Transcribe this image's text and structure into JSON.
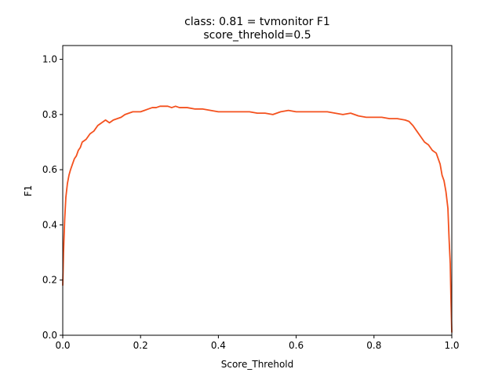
{
  "chart_data": {
    "type": "line",
    "title": "class: 0.81 = tvmonitor F1",
    "subtitle": "score_threhold=0.5",
    "xlabel": "Score_Threhold",
    "ylabel": "F1",
    "xlim": [
      0.0,
      1.0
    ],
    "ylim": [
      0.0,
      1.05
    ],
    "xticks": [
      0.0,
      0.2,
      0.4,
      0.6,
      0.8,
      1.0
    ],
    "xtick_labels": [
      "0.0",
      "0.2",
      "0.4",
      "0.6",
      "0.8",
      "1.0"
    ],
    "yticks": [
      0.0,
      0.2,
      0.4,
      0.6,
      0.8,
      1.0
    ],
    "ytick_labels": [
      "0.0",
      "0.2",
      "0.4",
      "0.6",
      "0.8",
      "1.0"
    ],
    "grid": false,
    "series": [
      {
        "color": "#f4511e",
        "x": [
          0.0,
          0.002,
          0.005,
          0.008,
          0.012,
          0.016,
          0.02,
          0.025,
          0.03,
          0.035,
          0.04,
          0.045,
          0.05,
          0.06,
          0.07,
          0.08,
          0.09,
          0.1,
          0.11,
          0.12,
          0.125,
          0.13,
          0.14,
          0.15,
          0.16,
          0.17,
          0.18,
          0.19,
          0.2,
          0.21,
          0.22,
          0.23,
          0.24,
          0.25,
          0.26,
          0.27,
          0.28,
          0.29,
          0.3,
          0.32,
          0.34,
          0.36,
          0.38,
          0.4,
          0.42,
          0.44,
          0.46,
          0.48,
          0.5,
          0.52,
          0.54,
          0.56,
          0.58,
          0.6,
          0.62,
          0.64,
          0.66,
          0.68,
          0.7,
          0.72,
          0.74,
          0.75,
          0.76,
          0.78,
          0.8,
          0.82,
          0.84,
          0.86,
          0.88,
          0.89,
          0.9,
          0.91,
          0.92,
          0.93,
          0.94,
          0.95,
          0.96,
          0.965,
          0.97,
          0.975,
          0.98,
          0.985,
          0.99,
          0.993,
          0.996,
          0.998,
          1.0
        ],
        "y": [
          0.18,
          0.3,
          0.42,
          0.5,
          0.55,
          0.58,
          0.6,
          0.62,
          0.64,
          0.65,
          0.67,
          0.68,
          0.7,
          0.71,
          0.73,
          0.74,
          0.76,
          0.77,
          0.78,
          0.77,
          0.775,
          0.78,
          0.785,
          0.79,
          0.8,
          0.805,
          0.81,
          0.81,
          0.81,
          0.815,
          0.82,
          0.825,
          0.825,
          0.83,
          0.83,
          0.83,
          0.825,
          0.83,
          0.825,
          0.825,
          0.82,
          0.82,
          0.815,
          0.81,
          0.81,
          0.81,
          0.81,
          0.81,
          0.805,
          0.805,
          0.8,
          0.81,
          0.815,
          0.81,
          0.81,
          0.81,
          0.81,
          0.81,
          0.805,
          0.8,
          0.805,
          0.8,
          0.795,
          0.79,
          0.79,
          0.79,
          0.785,
          0.785,
          0.78,
          0.775,
          0.76,
          0.74,
          0.72,
          0.7,
          0.69,
          0.67,
          0.66,
          0.64,
          0.62,
          0.58,
          0.56,
          0.52,
          0.46,
          0.35,
          0.26,
          0.12,
          0.01
        ]
      }
    ]
  }
}
